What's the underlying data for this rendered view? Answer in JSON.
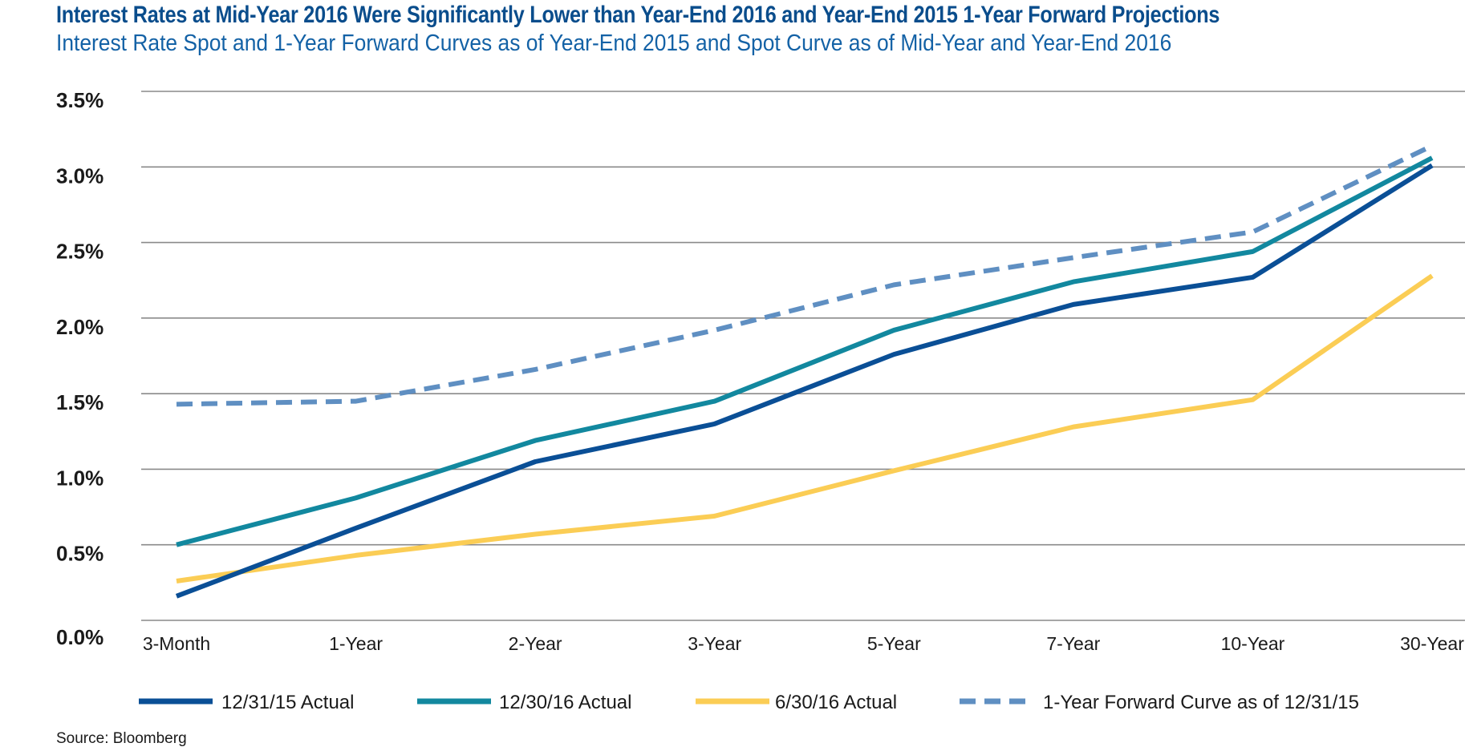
{
  "title": "Interest Rates at Mid-Year 2016 Were Significantly Lower than Year-End 2016 and Year-End 2015 1-Year Forward Projections",
  "subtitle": "Interest Rate Spot and 1-Year Forward Curves as of Year-End 2015 and Spot Curve as of Mid-Year and Year-End 2016",
  "source": "Source: Bloomberg",
  "chart_data": {
    "type": "line",
    "categories": [
      "3-Month",
      "1-Year",
      "2-Year",
      "3-Year",
      "5-Year",
      "7-Year",
      "10-Year",
      "30-Year"
    ],
    "ylim": [
      0,
      3.5
    ],
    "yticks": [
      0,
      0.5,
      1.0,
      1.5,
      2.0,
      2.5,
      3.0,
      3.5
    ],
    "ytick_labels": [
      "0.0%",
      "0.5%",
      "1.0%",
      "1.5%",
      "2.0%",
      "2.5%",
      "3.0%",
      "3.5%"
    ],
    "grid": "horizontal",
    "legend_position": "bottom",
    "series": [
      {
        "name": "12/31/15 Actual",
        "color": "#0a4f96",
        "dashed": false,
        "values": [
          0.16,
          0.61,
          1.05,
          1.3,
          1.76,
          2.09,
          2.27,
          3.01
        ]
      },
      {
        "name": "12/30/16 Actual",
        "color": "#12889f",
        "dashed": false,
        "values": [
          0.5,
          0.81,
          1.19,
          1.45,
          1.92,
          2.24,
          2.44,
          3.06
        ]
      },
      {
        "name": "6/30/16 Actual",
        "color": "#fbcd55",
        "dashed": false,
        "values": [
          0.26,
          0.43,
          0.57,
          0.69,
          0.99,
          1.28,
          1.46,
          2.28
        ]
      },
      {
        "name": "1-Year Forward Curve as of 12/31/15",
        "color": "#5f8fc2",
        "dashed": true,
        "values": [
          1.43,
          1.45,
          1.66,
          1.92,
          2.22,
          2.4,
          2.57,
          3.14
        ]
      }
    ]
  }
}
